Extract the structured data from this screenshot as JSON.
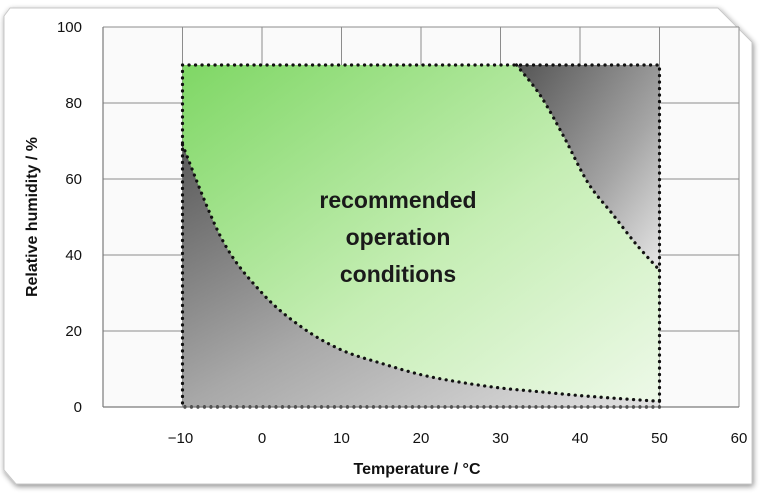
{
  "chart_data": {
    "type": "area",
    "xlabel": "Temperature / °C",
    "ylabel": "Relative humidity / %",
    "xlim": [
      -20,
      60
    ],
    "ylim": [
      0,
      100
    ],
    "x_ticks": [
      -10,
      0,
      10,
      20,
      30,
      40,
      50,
      60
    ],
    "y_ticks": [
      0,
      20,
      40,
      60,
      80,
      100
    ],
    "x_tick_labels": [
      "−10",
      "0",
      "10",
      "20",
      "30",
      "40",
      "50",
      "60"
    ],
    "y_tick_labels": [
      "0",
      "20",
      "40",
      "60",
      "80",
      "100"
    ],
    "grid": true,
    "annotation": [
      "recommended",
      "operation",
      "conditions"
    ],
    "bounding_box": {
      "x": [
        -10,
        50
      ],
      "y": [
        0,
        90
      ]
    },
    "lower_boundary": {
      "x": [
        -10,
        -5,
        0,
        5,
        10,
        15,
        20,
        25,
        30,
        35,
        40,
        45,
        50
      ],
      "y": [
        69,
        44,
        30,
        21,
        15,
        11.5,
        8.5,
        6.5,
        5,
        4,
        3,
        2.2,
        1.5
      ]
    },
    "upper_boundary": {
      "x": [
        32,
        35,
        38,
        41,
        44,
        47,
        50
      ],
      "y": [
        90,
        82,
        71,
        59,
        51,
        43,
        36
      ]
    },
    "colors": {
      "recommended_region": "#8fdc78",
      "outside_region": "#6a6a6a",
      "boundary": "#111111"
    }
  }
}
